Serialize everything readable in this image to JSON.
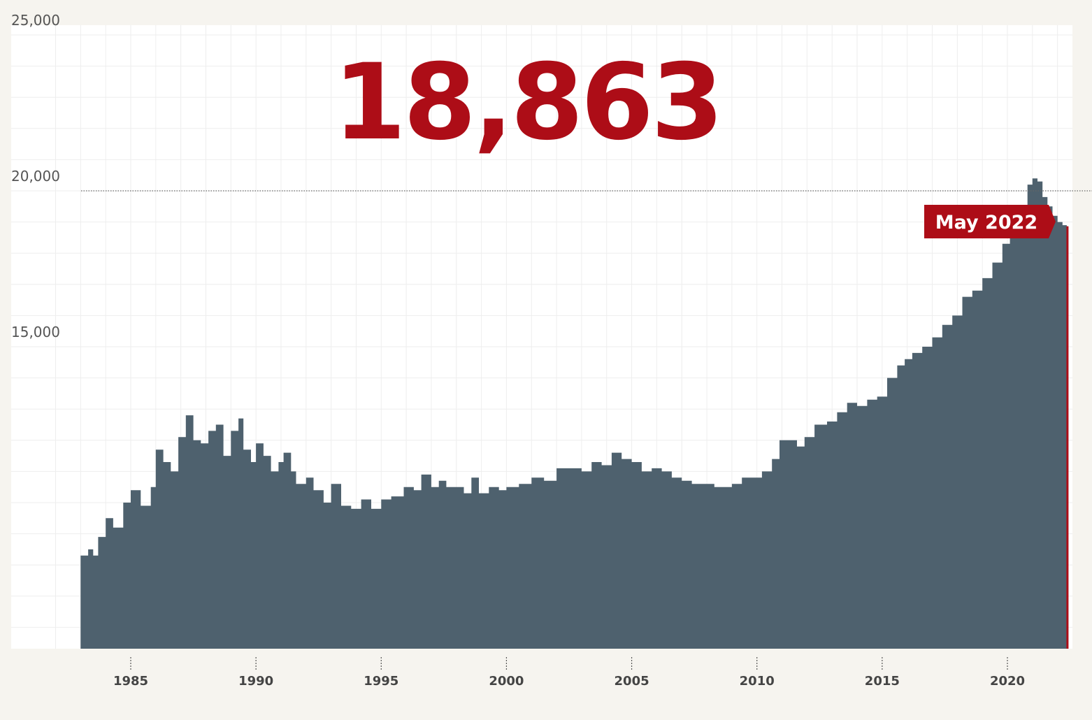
{
  "headline_value": "18,863",
  "colors": {
    "background": "#f6f4ef",
    "plot_background": "#ffffff",
    "area_fill": "#4e616e",
    "accent_red": "#ad0d17",
    "grid": "#eeeeee",
    "axis_text": "#555555"
  },
  "chart_data": {
    "type": "area",
    "title": "",
    "xlabel": "",
    "ylabel": "",
    "xlim": [
      1981.6,
      2023.2
    ],
    "ylim": [
      5000,
      25000
    ],
    "x_ticks": [
      1985,
      1990,
      1995,
      2000,
      2005,
      2010,
      2015,
      2020
    ],
    "y_ticks": [
      {
        "value": 15000,
        "label": "15,000"
      },
      {
        "value": 20000,
        "label": "20,000"
      },
      {
        "value": 25000,
        "label": "25,000"
      }
    ],
    "reference_line": {
      "value": 20000,
      "style": "dotted"
    },
    "grid": true,
    "annotation": {
      "label": "May 2022",
      "x": 2022.37,
      "value": 18863
    },
    "series": [
      {
        "values": [
          [
            1983.0,
            8300
          ],
          [
            1983.3,
            8500
          ],
          [
            1983.5,
            8300
          ],
          [
            1983.7,
            8900
          ],
          [
            1984.0,
            9500
          ],
          [
            1984.3,
            9200
          ],
          [
            1984.7,
            10000
          ],
          [
            1985.0,
            10400
          ],
          [
            1985.4,
            9900
          ],
          [
            1985.8,
            10500
          ],
          [
            1986.0,
            11700
          ],
          [
            1986.3,
            11300
          ],
          [
            1986.6,
            11000
          ],
          [
            1986.9,
            12100
          ],
          [
            1987.2,
            12800
          ],
          [
            1987.5,
            12000
          ],
          [
            1987.8,
            11900
          ],
          [
            1988.1,
            12300
          ],
          [
            1988.4,
            12500
          ],
          [
            1988.7,
            11500
          ],
          [
            1989.0,
            12300
          ],
          [
            1989.3,
            12700
          ],
          [
            1989.5,
            11700
          ],
          [
            1989.8,
            11300
          ],
          [
            1990.0,
            11900
          ],
          [
            1990.3,
            11500
          ],
          [
            1990.6,
            11000
          ],
          [
            1990.9,
            11300
          ],
          [
            1991.1,
            11600
          ],
          [
            1991.4,
            11000
          ],
          [
            1991.6,
            10600
          ],
          [
            1992.0,
            10800
          ],
          [
            1992.3,
            10400
          ],
          [
            1992.7,
            10000
          ],
          [
            1993.0,
            10600
          ],
          [
            1993.4,
            9900
          ],
          [
            1993.8,
            9800
          ],
          [
            1994.2,
            10100
          ],
          [
            1994.6,
            9800
          ],
          [
            1995.0,
            10100
          ],
          [
            1995.4,
            10200
          ],
          [
            1995.9,
            10500
          ],
          [
            1996.3,
            10400
          ],
          [
            1996.6,
            10900
          ],
          [
            1997.0,
            10500
          ],
          [
            1997.3,
            10700
          ],
          [
            1997.6,
            10500
          ],
          [
            1998.0,
            10500
          ],
          [
            1998.3,
            10300
          ],
          [
            1998.6,
            10800
          ],
          [
            1998.9,
            10300
          ],
          [
            1999.3,
            10500
          ],
          [
            1999.7,
            10400
          ],
          [
            2000.0,
            10500
          ],
          [
            2000.5,
            10600
          ],
          [
            2001.0,
            10800
          ],
          [
            2001.5,
            10700
          ],
          [
            2002.0,
            11100
          ],
          [
            2002.5,
            11100
          ],
          [
            2003.0,
            11000
          ],
          [
            2003.4,
            11300
          ],
          [
            2003.8,
            11200
          ],
          [
            2004.2,
            11600
          ],
          [
            2004.6,
            11400
          ],
          [
            2005.0,
            11300
          ],
          [
            2005.4,
            11000
          ],
          [
            2005.8,
            11100
          ],
          [
            2006.2,
            11000
          ],
          [
            2006.6,
            10800
          ],
          [
            2007.0,
            10700
          ],
          [
            2007.4,
            10600
          ],
          [
            2007.8,
            10600
          ],
          [
            2008.3,
            10500
          ],
          [
            2008.7,
            10500
          ],
          [
            2009.0,
            10600
          ],
          [
            2009.4,
            10800
          ],
          [
            2009.8,
            10800
          ],
          [
            2010.2,
            11000
          ],
          [
            2010.6,
            11400
          ],
          [
            2010.9,
            12000
          ],
          [
            2011.2,
            12000
          ],
          [
            2011.6,
            11800
          ],
          [
            2011.9,
            12100
          ],
          [
            2012.3,
            12500
          ],
          [
            2012.8,
            12600
          ],
          [
            2013.2,
            12900
          ],
          [
            2013.6,
            13200
          ],
          [
            2014.0,
            13100
          ],
          [
            2014.4,
            13300
          ],
          [
            2014.8,
            13400
          ],
          [
            2015.2,
            14000
          ],
          [
            2015.6,
            14400
          ],
          [
            2015.9,
            14600
          ],
          [
            2016.2,
            14800
          ],
          [
            2016.6,
            15000
          ],
          [
            2017.0,
            15300
          ],
          [
            2017.4,
            15700
          ],
          [
            2017.8,
            16000
          ],
          [
            2018.2,
            16600
          ],
          [
            2018.6,
            16800
          ],
          [
            2019.0,
            17200
          ],
          [
            2019.4,
            17700
          ],
          [
            2019.8,
            18300
          ],
          [
            2020.1,
            18600
          ],
          [
            2020.5,
            19000
          ],
          [
            2020.8,
            20200
          ],
          [
            2021.0,
            20400
          ],
          [
            2021.2,
            20300
          ],
          [
            2021.4,
            19800
          ],
          [
            2021.6,
            19500
          ],
          [
            2021.8,
            19200
          ],
          [
            2022.0,
            19000
          ],
          [
            2022.2,
            18900
          ],
          [
            2022.37,
            18863
          ]
        ]
      }
    ]
  }
}
